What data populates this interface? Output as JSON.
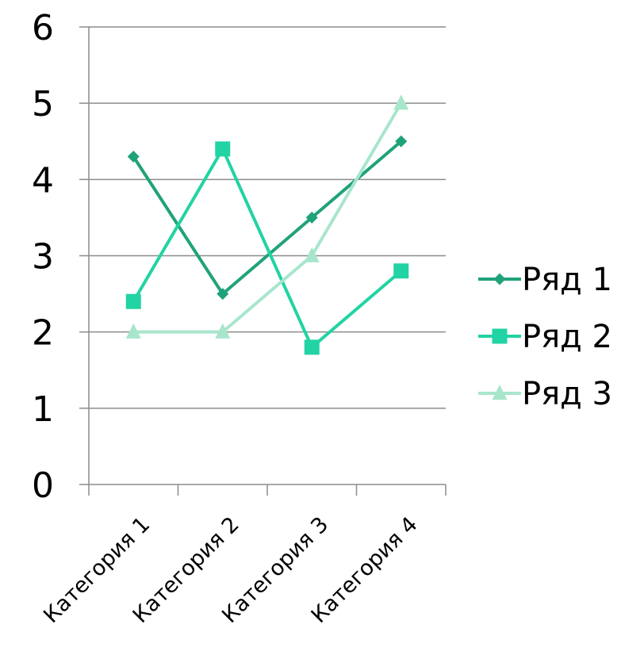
{
  "chart_data": {
    "type": "line",
    "categories": [
      "Категория 1",
      "Категория 2",
      "Категория 3",
      "Категория 4"
    ],
    "series": [
      {
        "name": "Ряд 1",
        "values": [
          4.3,
          2.5,
          3.5,
          4.5
        ],
        "color": "#1fa27a",
        "marker": "diamond"
      },
      {
        "name": "Ряд 2",
        "values": [
          2.4,
          4.4,
          1.8,
          2.8
        ],
        "color": "#22d3a3",
        "marker": "square"
      },
      {
        "name": "Ряд 3",
        "values": [
          2.0,
          2.0,
          3.0,
          5.0
        ],
        "color": "#a8e6cc",
        "marker": "triangle"
      }
    ],
    "yticks": [
      "0",
      "1",
      "2",
      "3",
      "4",
      "5",
      "6"
    ],
    "ylim": [
      0,
      6
    ],
    "grid": true,
    "legend_position": "right",
    "title": "",
    "xlabel": "",
    "ylabel": ""
  }
}
